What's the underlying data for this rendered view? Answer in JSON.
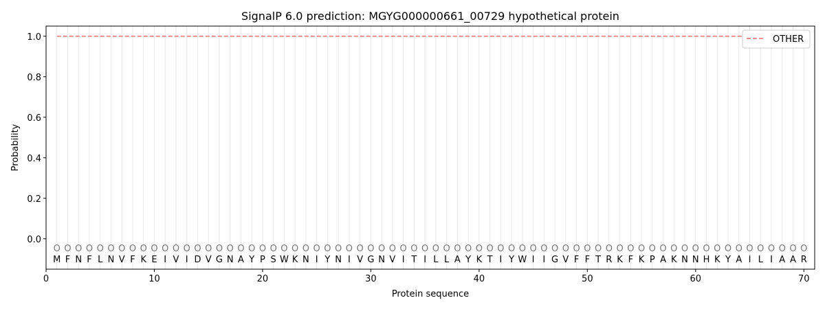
{
  "chart_data": {
    "type": "line",
    "title": "SignalP 6.0 prediction: MGYG000000661_00729 hypothetical protein",
    "xlabel": "Protein sequence",
    "ylabel": "Probability",
    "xlim": [
      0,
      71
    ],
    "ylim": [
      -0.15,
      1.05
    ],
    "xticks": [
      0,
      10,
      20,
      30,
      40,
      50,
      60,
      70
    ],
    "yticks": [
      0.0,
      0.2,
      0.4,
      0.6,
      0.8,
      1.0
    ],
    "ytick_labels": [
      "0.0",
      "0.2",
      "0.4",
      "0.6",
      "0.8",
      "1.0"
    ],
    "legend_position": "top-right",
    "sequence": "MFNFLNVFKEIVIDVGNAYPSWKNIYNIVGNVITILLAYKTIYWIIGVFFTRKFKPAKNNHKYAILIAAR",
    "region_labels": "OOOOOOOOOOOOOOOOOOOOOOOOOOOOOOOOOOOOOOOOOOOOOOOOOOOOOOOOOOOOOOOOOOOOOO",
    "series": [
      {
        "name": "OTHER",
        "color": "#f08080",
        "style": "dashed",
        "x_start": 1,
        "x_end": 70,
        "value": 1.0
      }
    ]
  }
}
